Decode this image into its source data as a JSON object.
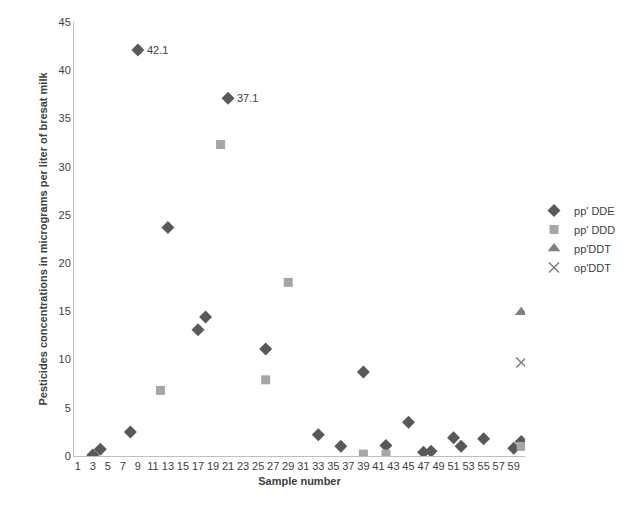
{
  "chart_data": {
    "type": "scatter",
    "x_label": "Sample number",
    "y_label": "Pesticides concentrations in micrograms per liter of bresat milk",
    "xlim": [
      0.5,
      60.5
    ],
    "xticks": [
      1,
      3,
      5,
      7,
      9,
      11,
      13,
      15,
      17,
      19,
      21,
      23,
      25,
      27,
      29,
      31,
      33,
      35,
      37,
      39,
      41,
      43,
      45,
      47,
      49,
      51,
      53,
      55,
      57,
      59
    ],
    "ylim": [
      0,
      45
    ],
    "yticks": [
      0,
      5,
      10,
      15,
      20,
      25,
      30,
      35,
      40,
      45
    ],
    "grid": false,
    "legend": "right",
    "series": [
      {
        "name": "pp' DDE",
        "color": "#595959",
        "marker": "diamond",
        "x": [
          3,
          4,
          8,
          9,
          13,
          17,
          18,
          21,
          26,
          33,
          36,
          39,
          42,
          45,
          47,
          48,
          51,
          52,
          55,
          59,
          60
        ],
        "values": [
          0.1,
          0.7,
          2.5,
          42.1,
          23.7,
          13.1,
          14.4,
          37.1,
          11.1,
          2.2,
          1.0,
          8.7,
          1.1,
          3.5,
          0.4,
          0.5,
          1.9,
          1.0,
          1.8,
          0.8,
          1.5
        ]
      },
      {
        "name": "pp' DDD",
        "color": "#a6a6a6",
        "marker": "square",
        "x": [
          12,
          20,
          26,
          29,
          39,
          42,
          60
        ],
        "values": [
          6.8,
          32.3,
          7.9,
          18.0,
          0.2,
          0.2,
          1.0
        ]
      },
      {
        "name": "pp'DDT",
        "color": "#808080",
        "marker": "triangle",
        "x": [
          60
        ],
        "values": [
          14.9
        ]
      },
      {
        "name": "op'DDT",
        "color": "#7f7f7f",
        "marker": "x",
        "x": [
          60
        ],
        "values": [
          9.7
        ]
      }
    ],
    "annotations": [
      {
        "x": 9,
        "y": 42.1,
        "text": "42.1"
      },
      {
        "x": 21,
        "y": 37.1,
        "text": "37.1"
      }
    ]
  }
}
